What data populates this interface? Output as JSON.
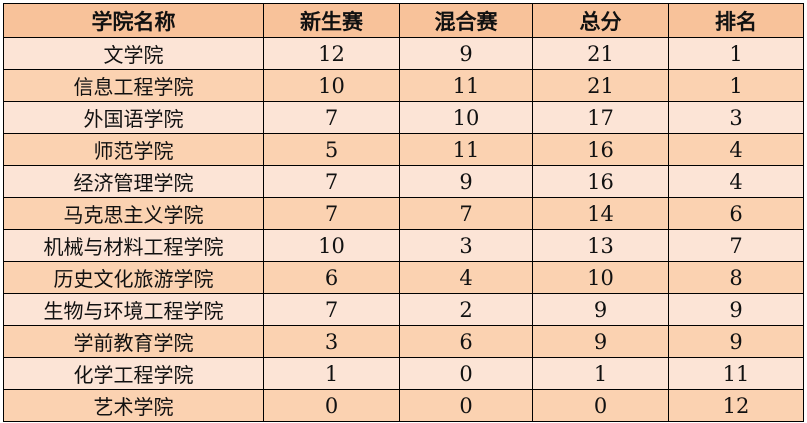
{
  "headers": [
    "学院名称",
    "新生赛",
    "混合赛",
    "总分",
    "排名"
  ],
  "rows": [
    [
      "文学院",
      "12",
      "9",
      "21",
      "1"
    ],
    [
      "信息工程学院",
      "10",
      "11",
      "21",
      "1"
    ],
    [
      "外国语学院",
      "7",
      "10",
      "17",
      "3"
    ],
    [
      "师范学院",
      "5",
      "11",
      "16",
      "4"
    ],
    [
      "经济管理学院",
      "7",
      "9",
      "16",
      "4"
    ],
    [
      "马克思主义学院",
      "7",
      "7",
      "14",
      "6"
    ],
    [
      "机械与材料工程学院",
      "10",
      "3",
      "13",
      "7"
    ],
    [
      "历史文化旅游学院",
      "6",
      "4",
      "10",
      "8"
    ],
    [
      "生物与环境工程学院",
      "7",
      "2",
      "9",
      "9"
    ],
    [
      "学前教育学院",
      "3",
      "6",
      "9",
      "9"
    ],
    [
      "化学工程学院",
      "1",
      "0",
      "1",
      "11"
    ],
    [
      "艺术学院",
      "0",
      "0",
      "0",
      "12"
    ]
  ],
  "colors": {
    "header": "#F8C29A",
    "row_odd": "#FCE4D6",
    "row_even": "#FBD2B1"
  }
}
